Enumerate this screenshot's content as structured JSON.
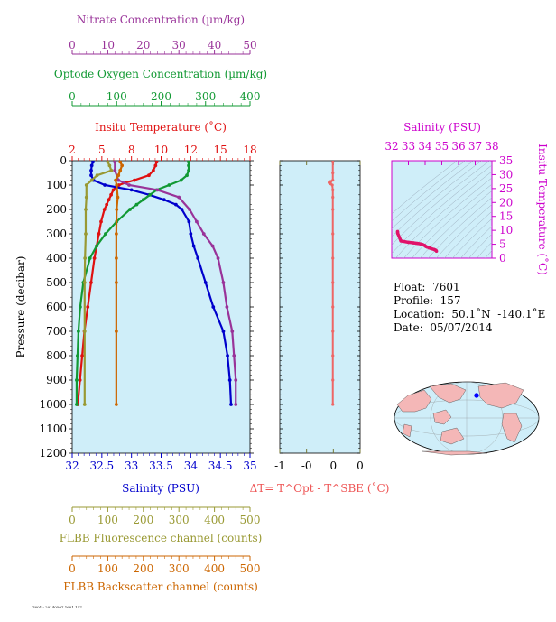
{
  "chart_data": [
    {
      "type": "line",
      "title": "",
      "y_axis": {
        "label": "Pressure (decibar)",
        "range": [
          0,
          1200
        ],
        "inverted": true,
        "ticks": [
          0,
          100,
          200,
          300,
          400,
          500,
          600,
          700,
          800,
          900,
          1000,
          1100,
          1200
        ]
      },
      "x_axes": [
        {
          "key": "nitrate",
          "label": "Nitrate Concentration (µm/kg)",
          "range": [
            0,
            50
          ],
          "ticks": [
            0,
            10,
            20,
            30,
            40,
            50
          ],
          "position": "top",
          "color": "#993399"
        },
        {
          "key": "oxygen",
          "label": "Optode Oxygen Concentration (µm/kg)",
          "range": [
            0,
            400
          ],
          "ticks": [
            0,
            100,
            200,
            300,
            400
          ],
          "position": "top",
          "color": "#119933"
        },
        {
          "key": "temperature",
          "label": "Insitu Temperature (˚C)",
          "range": [
            2,
            18
          ],
          "ticks": [
            2,
            5,
            8,
            10,
            12,
            15,
            18
          ],
          "position": "top",
          "color": "#e01010"
        },
        {
          "key": "salinity",
          "label": "Salinity (PSU)",
          "range": [
            32,
            35
          ],
          "ticks": [
            "32",
            "32.5",
            "33",
            "33.5",
            "34",
            "34.5",
            "35"
          ],
          "position": "bottom",
          "color": "#0000cc"
        },
        {
          "key": "fluorescence",
          "label": "FLBB Fluorescence channel (counts)",
          "range": [
            0,
            500
          ],
          "ticks": [
            0,
            100,
            200,
            300,
            400,
            500
          ],
          "position": "bottom",
          "color": "#999933"
        },
        {
          "key": "backscatter",
          "label": "FLBB Backscatter channel (counts)",
          "range": [
            0,
            500
          ],
          "ticks": [
            0,
            100,
            200,
            300,
            400,
            500
          ],
          "position": "bottom",
          "color": "#cc6600"
        }
      ],
      "series": [
        {
          "name": "Temperature",
          "axis": "temperature",
          "color": "#e01010",
          "pressure": [
            5,
            20,
            40,
            60,
            80,
            90,
            100,
            110,
            120,
            140,
            160,
            180,
            200,
            250,
            300,
            350,
            400,
            500,
            600,
            700,
            800,
            900,
            1000
          ],
          "values": [
            9.6,
            9.5,
            9.3,
            8.9,
            7.6,
            6.8,
            6.2,
            5.9,
            5.7,
            5.5,
            5.3,
            5.1,
            4.9,
            4.6,
            4.4,
            4.2,
            4.0,
            3.7,
            3.4,
            3.1,
            2.9,
            2.7,
            2.5
          ]
        },
        {
          "name": "Salinity",
          "axis": "salinity",
          "color": "#0000cc",
          "pressure": [
            5,
            20,
            40,
            60,
            80,
            100,
            120,
            140,
            160,
            180,
            200,
            250,
            300,
            350,
            400,
            500,
            600,
            700,
            800,
            900,
            1000
          ],
          "values": [
            32.35,
            32.33,
            32.32,
            32.32,
            32.36,
            32.55,
            33.0,
            33.3,
            33.55,
            33.75,
            33.85,
            33.97,
            34.0,
            34.05,
            34.12,
            34.25,
            34.38,
            34.55,
            34.62,
            34.66,
            34.68
          ]
        },
        {
          "name": "Oxygen",
          "axis": "oxygen",
          "color": "#119933",
          "pressure": [
            5,
            20,
            40,
            60,
            80,
            100,
            120,
            140,
            160,
            180,
            200,
            250,
            300,
            350,
            400,
            500,
            600,
            700,
            800,
            900,
            1000
          ],
          "values": [
            262,
            262,
            262,
            258,
            245,
            218,
            190,
            175,
            160,
            145,
            130,
            100,
            75,
            55,
            40,
            25,
            18,
            14,
            12,
            10,
            10
          ]
        },
        {
          "name": "Nitrate",
          "axis": "nitrate",
          "color": "#993399",
          "pressure": [
            5,
            40,
            80,
            100,
            120,
            150,
            200,
            250,
            300,
            350,
            400,
            500,
            600,
            700,
            800,
            900,
            1000
          ],
          "values": [
            12,
            12,
            13,
            16,
            24,
            30,
            33,
            35,
            37,
            39.5,
            41,
            42.5,
            43.5,
            45,
            45.5,
            46,
            46
          ]
        },
        {
          "name": "Fluorescence",
          "axis": "fluorescence",
          "color": "#999933",
          "pressure": [
            5,
            20,
            40,
            60,
            80,
            100,
            150,
            200,
            300,
            400,
            500,
            700,
            1000
          ],
          "values": [
            100,
            105,
            110,
            70,
            55,
            40,
            40,
            38,
            38,
            36,
            35,
            35,
            35
          ]
        },
        {
          "name": "Backscatter",
          "axis": "backscatter",
          "color": "#cc6600",
          "pressure": [
            5,
            20,
            40,
            60,
            80,
            100,
            150,
            200,
            300,
            400,
            500,
            700,
            1000
          ],
          "values": [
            135,
            140,
            135,
            130,
            122,
            125,
            128,
            125,
            124,
            124,
            124,
            124,
            124
          ]
        }
      ]
    },
    {
      "type": "line",
      "title": "",
      "xlabel": "ΔT= T^Opt - T^SBE (˚C)",
      "x_range": [
        -1,
        0.5
      ],
      "x_ticks": [
        "-1",
        "-0",
        "0",
        "0"
      ],
      "y_range": [
        0,
        1200
      ],
      "series": [
        {
          "name": "ΔT",
          "color": "#ee6666",
          "pressure": [
            5,
            50,
            80,
            85,
            90,
            95,
            100,
            120,
            150,
            200,
            300,
            400,
            500,
            600,
            700,
            800,
            900,
            1000
          ],
          "values": [
            -0.01,
            -0.01,
            -0.01,
            -0.05,
            -0.08,
            -0.05,
            -0.02,
            -0.01,
            -0.01,
            -0.01,
            -0.01,
            -0.01,
            -0.01,
            -0.01,
            -0.01,
            -0.01,
            -0.01,
            -0.01
          ]
        }
      ]
    },
    {
      "type": "scatter",
      "title": "Salinity (PSU)",
      "xlabel": "",
      "ylabel": "Insitu Temperature (˚C)",
      "x_range": [
        32,
        38
      ],
      "x_ticks": [
        "32",
        "33",
        "34",
        "35",
        "36",
        "37",
        "38"
      ],
      "y_range": [
        0,
        35
      ],
      "y_ticks": [
        0,
        5,
        10,
        15,
        20,
        25,
        30,
        35
      ],
      "series": [
        {
          "name": "T-S",
          "color": "#e0136a",
          "salinity": [
            32.35,
            32.36,
            32.55,
            33.0,
            33.3,
            33.55,
            33.75,
            33.85,
            33.97,
            34.0,
            34.05,
            34.12,
            34.25,
            34.38,
            34.55,
            34.62,
            34.66,
            34.68
          ],
          "temperature": [
            9.6,
            8.9,
            6.2,
            5.7,
            5.5,
            5.3,
            5.1,
            4.9,
            4.6,
            4.4,
            4.2,
            4.0,
            3.7,
            3.4,
            3.1,
            2.9,
            2.7,
            2.5
          ]
        }
      ]
    }
  ],
  "float_info": {
    "float_label": "Float:",
    "float_value": "7601",
    "profile_label": "Profile:",
    "profile_value": "157",
    "location_label": "Location:",
    "location_value": "50.1˚N  -140.1˚E",
    "date_label": "Date:",
    "date_value": "05/07/2014"
  },
  "footer_code": "7601 - 20140507.1601.157"
}
